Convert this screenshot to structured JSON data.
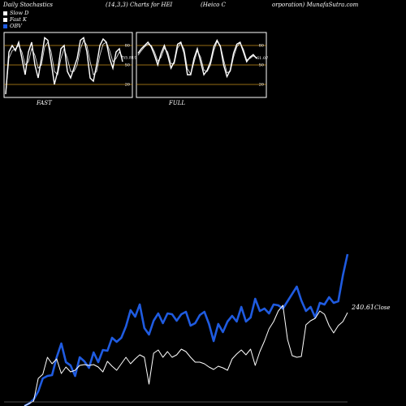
{
  "header": {
    "left": "Daily Stochastics",
    "params": "(14,3,3) Charts for HEI",
    "company_a": "(Heico  C",
    "company_b": "orporation) MunafaSutra.com"
  },
  "legend": [
    {
      "label": "Slow  D",
      "color": "#ffffff"
    },
    {
      "label": "Fast K",
      "color": "#ffffff"
    },
    {
      "label": "OBV",
      "color": "#1f5be0"
    }
  ],
  "colors": {
    "obv": "#1f5be0",
    "price": "#ffffff",
    "level_line": "#c8901c",
    "panel_border": "#ffffff"
  },
  "chart_data": [
    {
      "type": "line",
      "panel": "fast",
      "label": "FAST",
      "ylim": [
        0,
        100
      ],
      "ticks": [
        80,
        50,
        20
      ],
      "last_value_label": "55.8190",
      "series": [
        {
          "name": "Fast K",
          "values": [
            5,
            70,
            80,
            72,
            85,
            60,
            35,
            70,
            85,
            50,
            30,
            60,
            92,
            88,
            55,
            20,
            40,
            75,
            80,
            40,
            30,
            45,
            60,
            88,
            92,
            70,
            30,
            25,
            50,
            80,
            90,
            85,
            60,
            45,
            70,
            75,
            55
          ]
        },
        {
          "name": "Slow  D",
          "values": [
            5,
            60,
            72,
            75,
            80,
            70,
            50,
            55,
            75,
            65,
            45,
            50,
            78,
            85,
            70,
            40,
            35,
            60,
            75,
            60,
            40,
            40,
            50,
            75,
            88,
            80,
            55,
            35,
            40,
            65,
            82,
            85,
            72,
            55,
            60,
            70,
            62
          ]
        }
      ]
    },
    {
      "type": "line",
      "panel": "full",
      "label": "FULL",
      "ylim": [
        0,
        100
      ],
      "ticks": [
        80,
        50,
        20
      ],
      "last_value_label": "61.07",
      "series": [
        {
          "name": "Fast K",
          "values": [
            68,
            75,
            80,
            85,
            78,
            65,
            50,
            68,
            80,
            65,
            45,
            55,
            82,
            85,
            68,
            35,
            35,
            60,
            75,
            55,
            35,
            42,
            55,
            78,
            88,
            78,
            50,
            32,
            42,
            68,
            82,
            85,
            70,
            55,
            62,
            66,
            60
          ]
        },
        {
          "name": "Slow  D",
          "values": [
            65,
            72,
            78,
            82,
            80,
            70,
            56,
            62,
            76,
            70,
            52,
            52,
            76,
            84,
            74,
            44,
            36,
            54,
            72,
            62,
            42,
            40,
            50,
            72,
            86,
            80,
            58,
            38,
            40,
            62,
            78,
            84,
            74,
            58,
            60,
            64,
            61
          ]
        }
      ]
    },
    {
      "type": "line",
      "panel": "main",
      "last_value_label": "240.61",
      "last_value_suffix": "Close",
      "series": [
        {
          "name": "OBV",
          "values": [
            500,
            497,
            492,
            482,
            466,
            463,
            462,
            440,
            423,
            446,
            450,
            463,
            440,
            445,
            453,
            434,
            446,
            431,
            432,
            416,
            421,
            416,
            402,
            382,
            390,
            375,
            404,
            412,
            395,
            386,
            398,
            386,
            387,
            395,
            387,
            384,
            401,
            398,
            388,
            384,
            399,
            420,
            399,
            409,
            396,
            389,
            396,
            378,
            396,
            391,
            368,
            383,
            380,
            386,
            375,
            376,
            380,
            371,
            362,
            353,
            370,
            383,
            378,
            391,
            373,
            375,
            366,
            373,
            371,
            339,
            313
          ]
        },
        {
          "name": "Close",
          "values": [
            500,
            497,
            494,
            466,
            461,
            440,
            448,
            442,
            460,
            452,
            458,
            456,
            450,
            449,
            450,
            449,
            452,
            458,
            445,
            451,
            456,
            448,
            440,
            448,
            442,
            437,
            440,
            473,
            435,
            431,
            440,
            433,
            440,
            437,
            430,
            433,
            440,
            446,
            446,
            448,
            452,
            455,
            451,
            453,
            456,
            442,
            436,
            431,
            437,
            430,
            450,
            433,
            420,
            405,
            396,
            383,
            376,
            418,
            438,
            440,
            439,
            400,
            395,
            392,
            383,
            387,
            401,
            410,
            401,
            396,
            385
          ]
        }
      ]
    }
  ]
}
